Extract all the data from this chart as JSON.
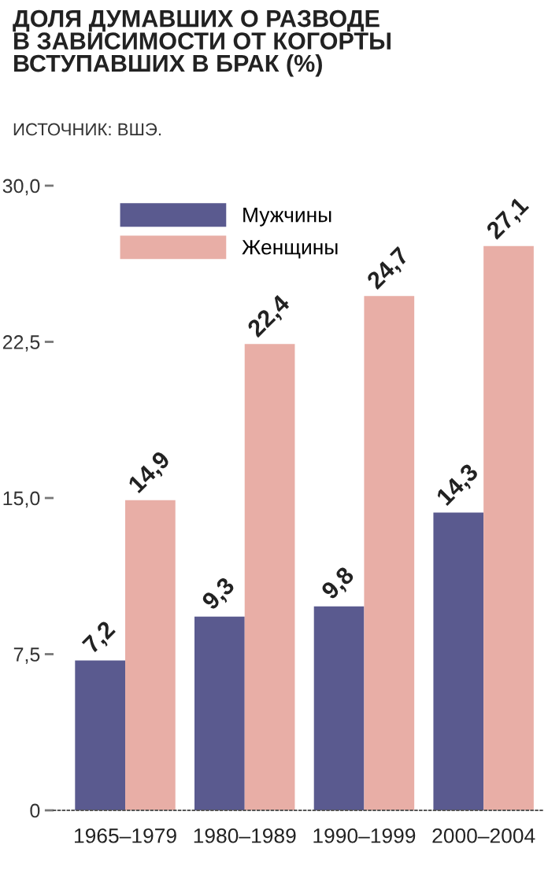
{
  "chart_data": {
    "type": "bar",
    "title": "ДОЛЯ ДУМАВШИХ О РАЗВОДЕ\nВ ЗАВИСИМОСТИ ОТ КОГОРТЫ\nВСТУПАВШИХ В БРАК (%)",
    "annotations": [
      "ИСТОЧНИК: ВШЭ."
    ],
    "categories": [
      "1965–1979",
      "1980–1989",
      "1990–1999",
      "2000–2004"
    ],
    "series": [
      {
        "name": "Мужчины",
        "color": "#5a5a8f",
        "values": [
          7.2,
          9.3,
          9.8,
          14.3
        ],
        "value_labels": [
          "7,2",
          "9,3",
          "9,8",
          "14,3"
        ]
      },
      {
        "name": "Женщины",
        "color": "#e8aea6",
        "values": [
          14.9,
          22.4,
          24.7,
          27.1
        ],
        "value_labels": [
          "14,9",
          "22,4",
          "24,7",
          "27,1"
        ]
      }
    ],
    "ylim": [
      0,
      30
    ],
    "yticks": [
      0,
      {
        "value": 7.5,
        "label": "7,5"
      },
      {
        "value": 15,
        "label": "15,0"
      },
      {
        "value": 22.5,
        "label": "22,5"
      },
      {
        "value": 30,
        "label": "30,0"
      }
    ],
    "legend": "top left"
  }
}
